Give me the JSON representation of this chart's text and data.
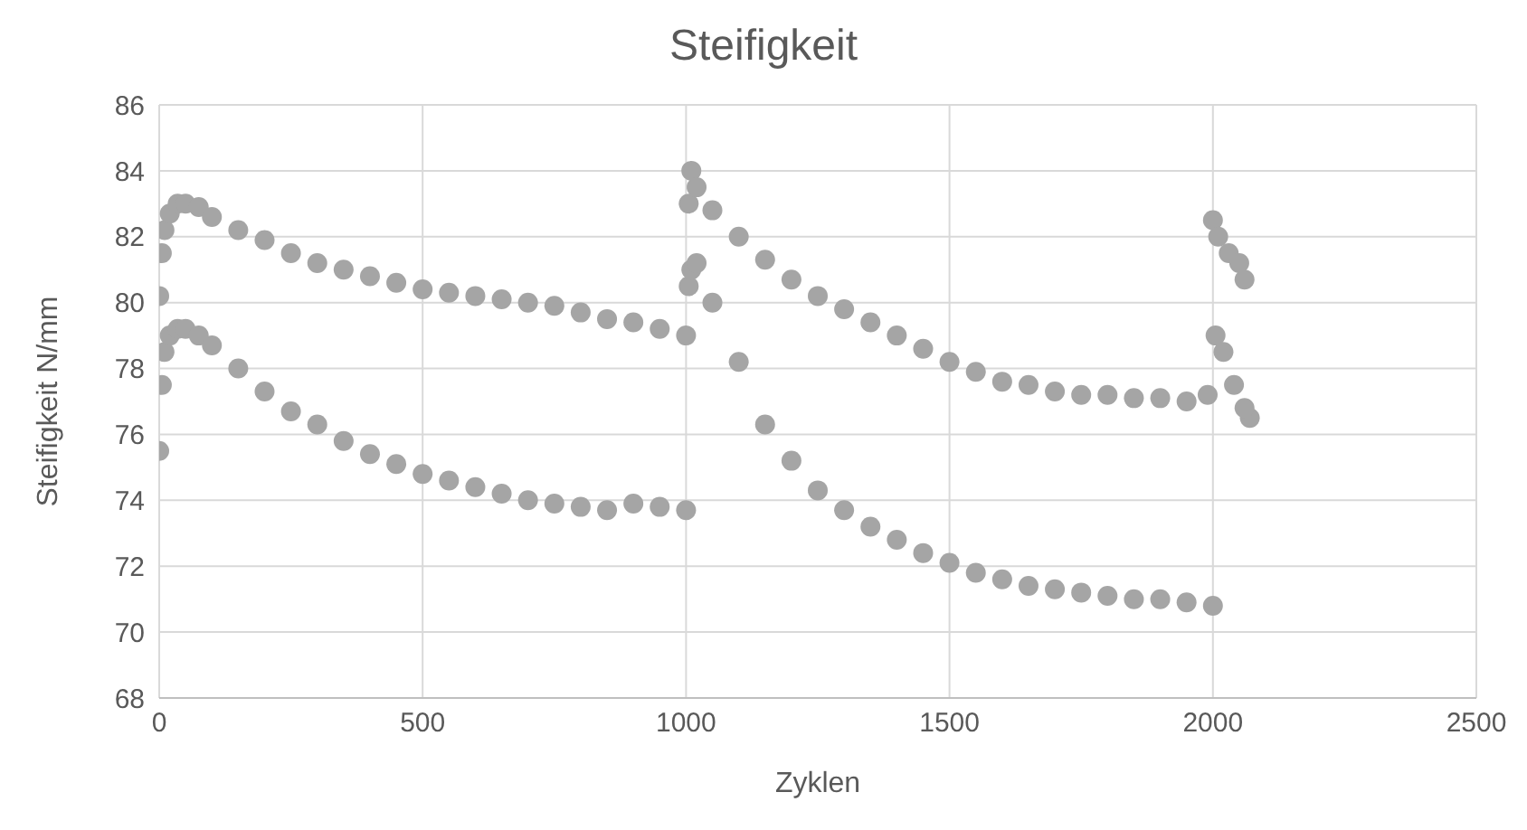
{
  "chart_data": {
    "type": "scatter",
    "title": "Steifigkeit",
    "xlabel": "Zyklen",
    "ylabel": "Steifigkeit N/mm",
    "xlim": [
      0,
      2500
    ],
    "xticks": [
      0,
      500,
      1000,
      1500,
      2000,
      2500
    ],
    "ylim": [
      68,
      86
    ],
    "yticks": [
      68,
      70,
      72,
      74,
      76,
      78,
      80,
      82,
      84,
      86
    ],
    "grid": true,
    "legend": false,
    "marker": "circle",
    "series": [
      {
        "color": "#a5a5a5",
        "x": [
          0,
          5,
          10,
          20,
          35,
          50,
          75,
          100,
          150,
          200,
          250,
          300,
          350,
          400,
          450,
          500,
          550,
          600,
          650,
          700,
          750,
          800,
          850,
          900,
          950,
          1000,
          0,
          5,
          10,
          20,
          35,
          50,
          75,
          100,
          150,
          200,
          250,
          300,
          350,
          400,
          450,
          500,
          550,
          600,
          650,
          700,
          750,
          800,
          850,
          900,
          950,
          1000,
          1005,
          1010,
          1020,
          1050,
          1100,
          1150,
          1200,
          1250,
          1300,
          1350,
          1400,
          1450,
          1500,
          1550,
          1600,
          1650,
          1700,
          1750,
          1800,
          1850,
          1900,
          1950,
          1990,
          2000,
          2010,
          2030,
          2050,
          2060,
          2070,
          1005,
          1010,
          1020,
          1050,
          1100,
          1150,
          1200,
          1250,
          1300,
          1350,
          1400,
          1450,
          1500,
          1550,
          1600,
          1650,
          1700,
          1750,
          1800,
          1850,
          1900,
          1950,
          2000,
          2005,
          2020,
          2040,
          2060
        ],
        "values": [
          80.2,
          81.5,
          82.2,
          82.7,
          83,
          83,
          82.9,
          82.6,
          82.2,
          81.9,
          81.5,
          81.2,
          81,
          80.8,
          80.6,
          80.4,
          80.3,
          80.2,
          80.1,
          80,
          79.9,
          79.7,
          79.5,
          79.4,
          79.2,
          79,
          75.5,
          77.5,
          78.5,
          79,
          79.2,
          79.2,
          79,
          78.7,
          78,
          77.3,
          76.7,
          76.3,
          75.8,
          75.4,
          75.1,
          74.8,
          74.6,
          74.4,
          74.2,
          74,
          73.9,
          73.8,
          73.7,
          73.9,
          73.8,
          73.7,
          83,
          84,
          83.5,
          82.8,
          82,
          81.3,
          80.7,
          80.2,
          79.8,
          79.4,
          79,
          78.6,
          78.2,
          77.9,
          77.6,
          77.5,
          77.3,
          77.2,
          77.2,
          77.1,
          77.1,
          77,
          77.2,
          82.5,
          82,
          81.5,
          81.2,
          80.7,
          76.5,
          80.5,
          81,
          81.2,
          80,
          78.2,
          76.3,
          75.2,
          74.3,
          73.7,
          73.2,
          72.8,
          72.4,
          72.1,
          71.8,
          71.6,
          71.4,
          71.3,
          71.2,
          71.1,
          71,
          71,
          70.9,
          70.8,
          79,
          78.5,
          77.5,
          76.8
        ]
      }
    ]
  }
}
